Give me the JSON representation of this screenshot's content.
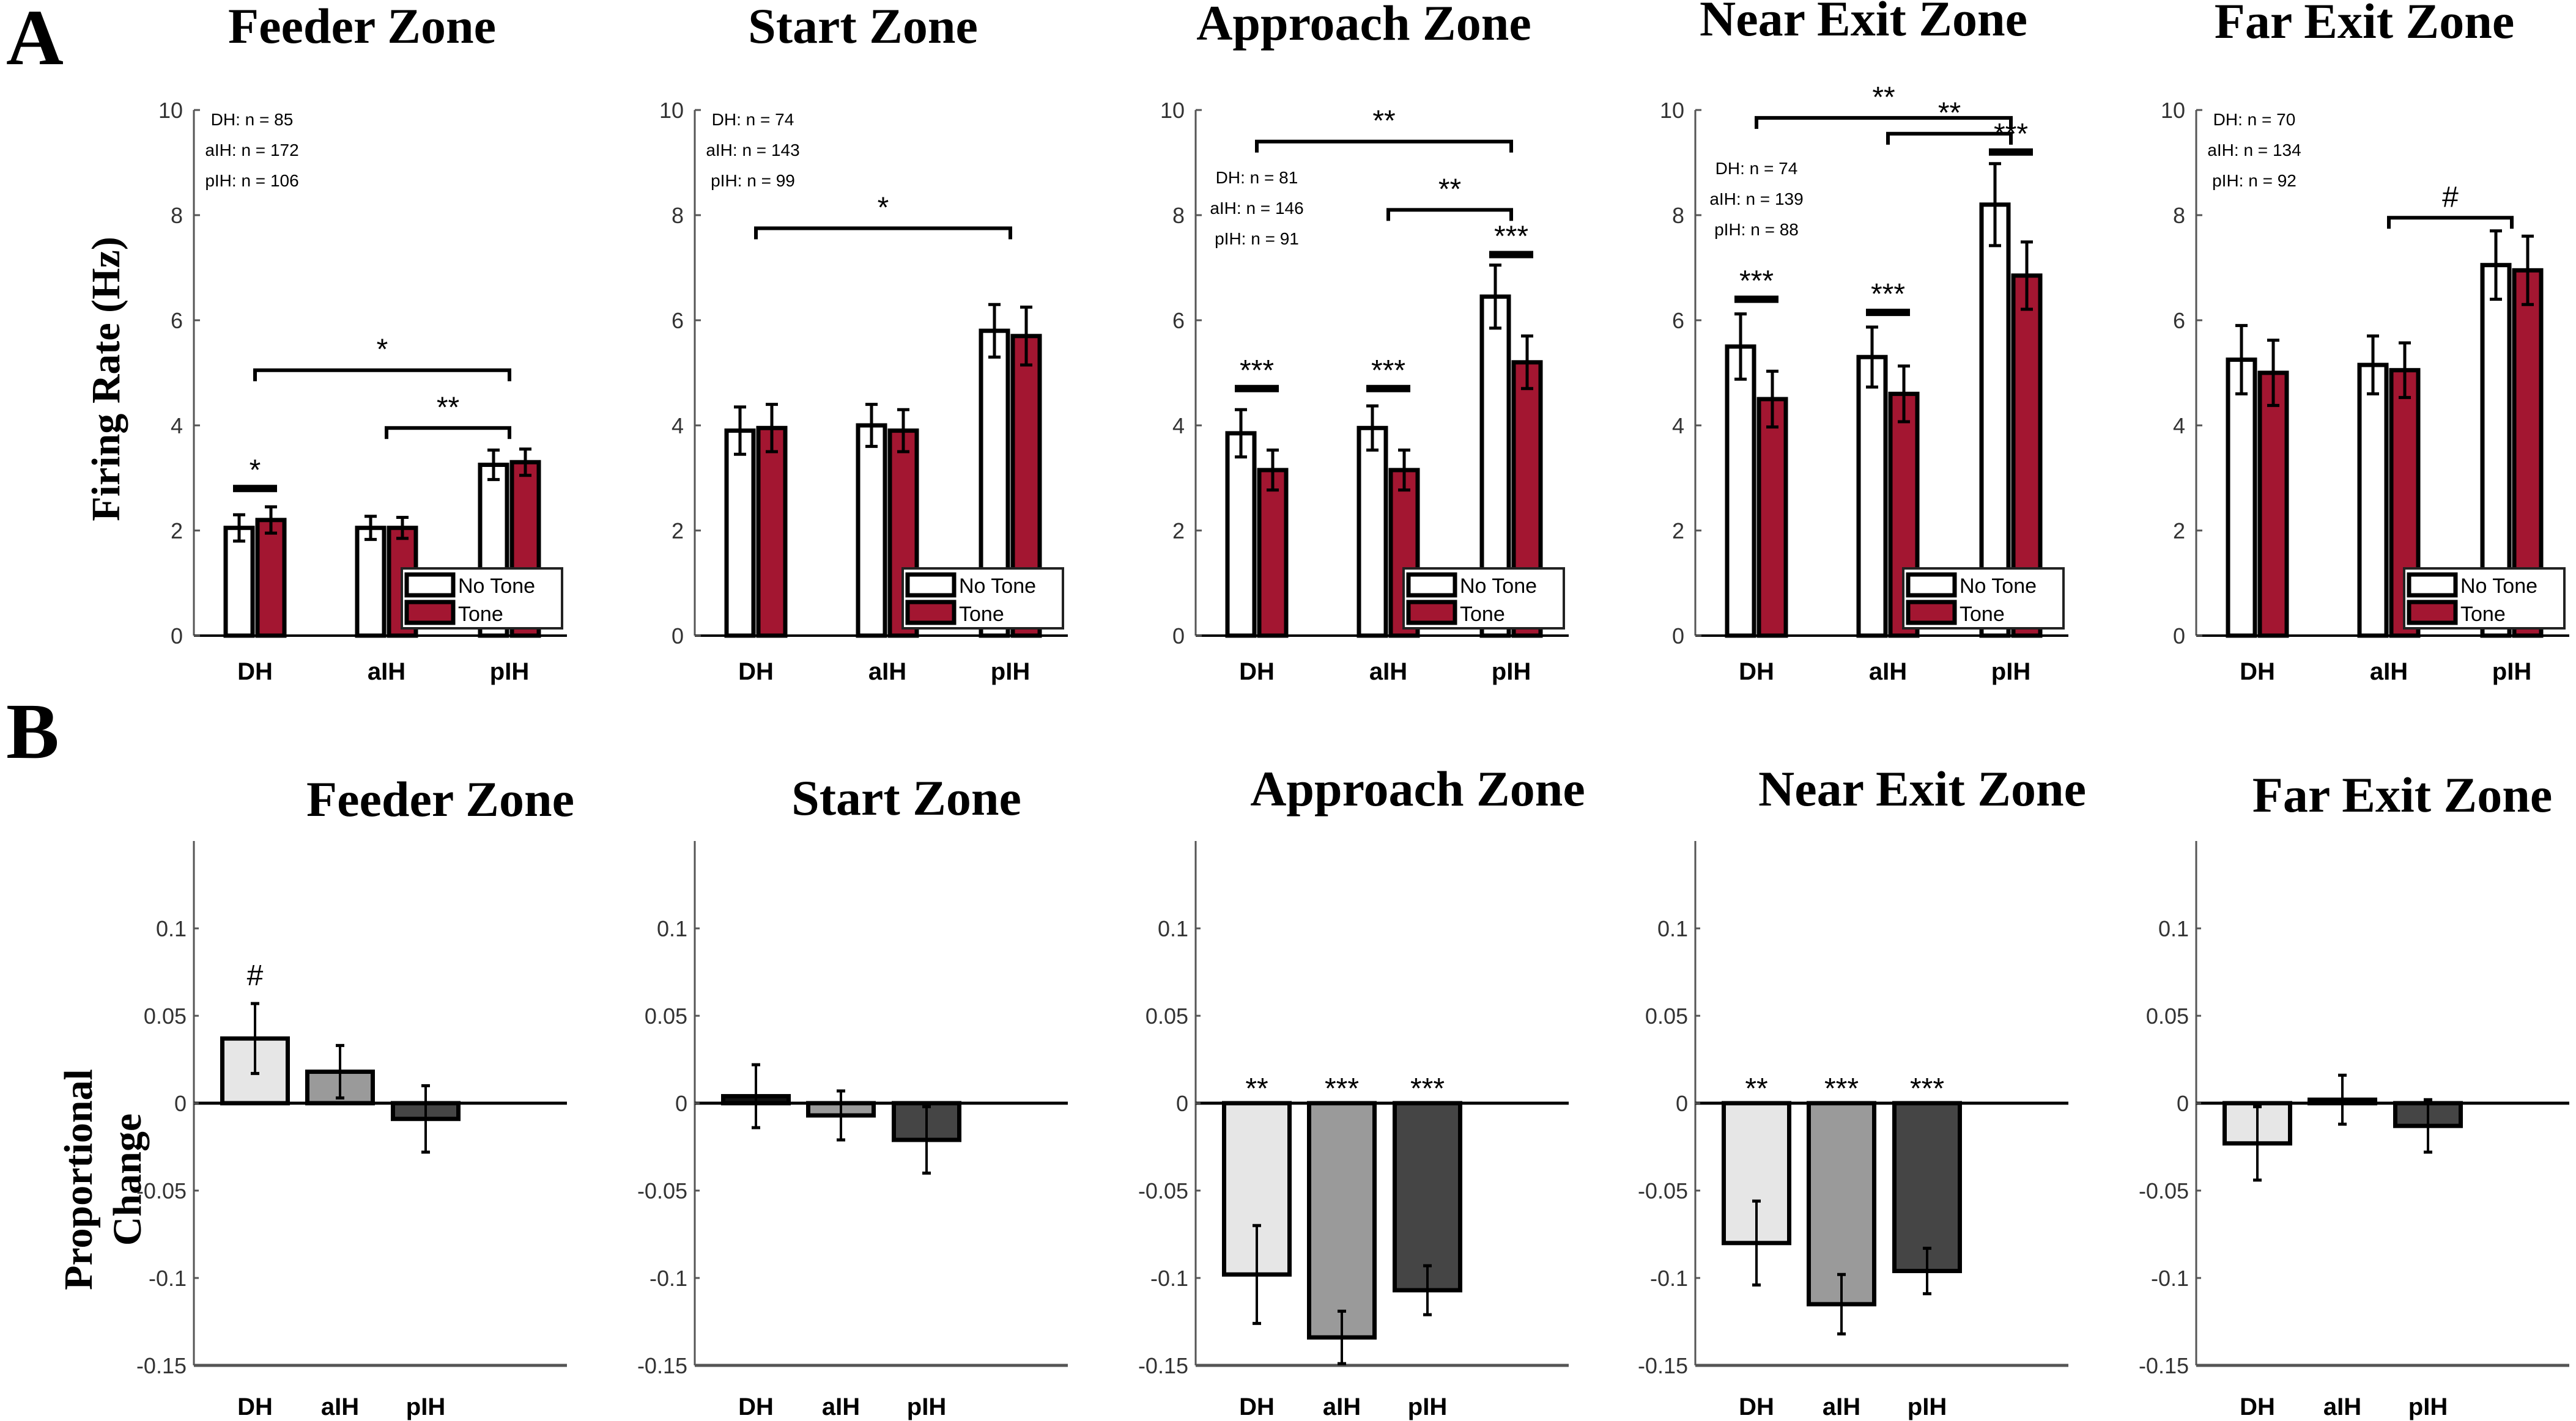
{
  "panel_labels": {
    "a": "A",
    "b": "B"
  },
  "colors": {
    "no_tone": "#ffffff",
    "tone": "#a31631",
    "DH": "#e6e6e6",
    "aIH": "#9a9a9a",
    "pIH": "#454545",
    "axis": "#000000"
  },
  "chart_data": [
    {
      "type": "bar",
      "panel": "A",
      "ylabel": "Firing Rate (Hz)",
      "ylim": [
        0,
        10
      ],
      "yticks": [
        "0",
        "2",
        "4",
        "6",
        "8",
        "10"
      ],
      "categories": [
        "DH",
        "aIH",
        "pIH"
      ],
      "legend": {
        "placement": "bottom-right",
        "entries": [
          "No Tone",
          "Tone"
        ]
      },
      "panels": [
        {
          "title": "Feeder Zone",
          "n_text": [
            "DH: n = 85",
            "aIH: n = 172",
            "pIH: n = 106"
          ],
          "series": [
            {
              "name": "No Tone",
              "values": [
                2.05,
                2.05,
                3.25
              ],
              "err": [
                0.25,
                0.22,
                0.28
              ]
            },
            {
              "name": "Tone",
              "values": [
                2.2,
                2.05,
                3.3
              ],
              "err": [
                0.25,
                0.2,
                0.25
              ]
            }
          ],
          "annotations": [
            {
              "text": "*",
              "from": "DH-No Tone",
              "to": "DH-Tone",
              "y": 2.8,
              "type": "pair"
            },
            {
              "text": "*",
              "from": "DH",
              "to": "pIH",
              "y": 5.05,
              "type": "bracket"
            },
            {
              "text": "**",
              "from": "aIH",
              "to": "pIH",
              "y": 3.95,
              "type": "bracket"
            }
          ]
        },
        {
          "title": "Start Zone",
          "n_text": [
            "DH: n = 74",
            "aIH: n = 143",
            "pIH: n = 99"
          ],
          "series": [
            {
              "name": "No Tone",
              "values": [
                3.9,
                4.0,
                5.8
              ],
              "err": [
                0.45,
                0.4,
                0.5
              ]
            },
            {
              "name": "Tone",
              "values": [
                3.95,
                3.9,
                5.7
              ],
              "err": [
                0.45,
                0.4,
                0.55
              ]
            }
          ],
          "annotations": [
            {
              "text": "*",
              "from": "DH",
              "to": "pIH",
              "y": 7.75,
              "type": "bracket"
            }
          ]
        },
        {
          "title": "Approach Zone",
          "n_text": [
            "DH: n = 81",
            "aIH: n = 146",
            "pIH: n = 91"
          ],
          "series": [
            {
              "name": "No Tone",
              "values": [
                3.85,
                3.95,
                6.45
              ],
              "err": [
                0.45,
                0.42,
                0.6
              ]
            },
            {
              "name": "Tone",
              "values": [
                3.15,
                3.15,
                5.2
              ],
              "err": [
                0.38,
                0.38,
                0.5
              ]
            }
          ],
          "annotations": [
            {
              "text": "***",
              "from": "DH-No Tone",
              "to": "DH-Tone",
              "y": 4.7,
              "type": "pair"
            },
            {
              "text": "***",
              "from": "aIH-No Tone",
              "to": "aIH-Tone",
              "y": 4.7,
              "type": "pair"
            },
            {
              "text": "***",
              "from": "pIH-No Tone",
              "to": "pIH-Tone",
              "y": 7.25,
              "type": "pair"
            },
            {
              "text": "**",
              "from": "DH",
              "to": "pIH",
              "y": 9.4,
              "type": "bracket"
            },
            {
              "text": "**",
              "from": "aIH",
              "to": "pIH",
              "y": 8.1,
              "type": "bracket"
            }
          ]
        },
        {
          "title": "Near Exit Zone",
          "n_text": [
            "DH: n = 74",
            "aIH: n = 139",
            "pIH: n = 88"
          ],
          "series": [
            {
              "name": "No Tone",
              "values": [
                5.5,
                5.3,
                8.2
              ],
              "err": [
                0.62,
                0.57,
                0.78
              ]
            },
            {
              "name": "Tone",
              "values": [
                4.5,
                4.6,
                6.85
              ],
              "err": [
                0.53,
                0.53,
                0.64
              ]
            }
          ],
          "annotations": [
            {
              "text": "***",
              "from": "DH-No Tone",
              "to": "DH-Tone",
              "y": 6.4,
              "type": "pair"
            },
            {
              "text": "***",
              "from": "aIH-No Tone",
              "to": "aIH-Tone",
              "y": 6.15,
              "type": "pair"
            },
            {
              "text": "***",
              "from": "pIH-No Tone",
              "to": "pIH-Tone",
              "y": 9.2,
              "type": "pair"
            },
            {
              "text": "**",
              "from": "DH",
              "to": "pIH",
              "y": 9.85,
              "type": "bracket"
            },
            {
              "text": "**",
              "from": "aIH",
              "to": "pIH",
              "y": 9.55,
              "type": "bracket"
            }
          ]
        },
        {
          "title": "Far Exit Zone",
          "n_text": [
            "DH: n = 70",
            "aIH: n = 134",
            "pIH: n = 92"
          ],
          "series": [
            {
              "name": "No Tone",
              "values": [
                5.25,
                5.15,
                7.05
              ],
              "err": [
                0.65,
                0.55,
                0.65
              ]
            },
            {
              "name": "Tone",
              "values": [
                5.0,
                5.05,
                6.95
              ],
              "err": [
                0.62,
                0.52,
                0.65
              ]
            }
          ],
          "annotations": [
            {
              "text": "#",
              "from": "aIH",
              "to": "pIH",
              "y": 7.95,
              "type": "bracket"
            }
          ]
        }
      ]
    },
    {
      "type": "bar",
      "panel": "B",
      "ylabel": "Proportional Change",
      "ylim": [
        -0.15,
        0.15
      ],
      "yticks": [
        "-0.15",
        "-0.1",
        "-0.05",
        "0",
        "0.05",
        "0.1"
      ],
      "categories": [
        "DH",
        "aIH",
        "pIH"
      ],
      "panels": [
        {
          "title": "Feeder Zone",
          "values": [
            0.037,
            0.018,
            -0.009
          ],
          "err": [
            0.02,
            0.015,
            0.019
          ],
          "annotations": [
            "#",
            "",
            ""
          ]
        },
        {
          "title": "Start Zone",
          "values": [
            0.004,
            -0.007,
            -0.021
          ],
          "err": [
            0.018,
            0.014,
            0.019
          ],
          "annotations": [
            "",
            "",
            ""
          ]
        },
        {
          "title": "Approach Zone",
          "values": [
            -0.098,
            -0.134,
            -0.107
          ],
          "err": [
            0.028,
            0.015,
            0.014
          ],
          "annotations": [
            "**",
            "***",
            "***"
          ]
        },
        {
          "title": "Near Exit Zone",
          "values": [
            -0.08,
            -0.115,
            -0.096
          ],
          "err": [
            0.024,
            0.017,
            0.013
          ],
          "annotations": [
            "**",
            "***",
            "***"
          ]
        },
        {
          "title": "Far Exit Zone",
          "values": [
            -0.023,
            0.002,
            -0.013
          ],
          "err": [
            0.021,
            0.014,
            0.015
          ],
          "annotations": [
            "",
            "",
            ""
          ]
        }
      ]
    }
  ]
}
